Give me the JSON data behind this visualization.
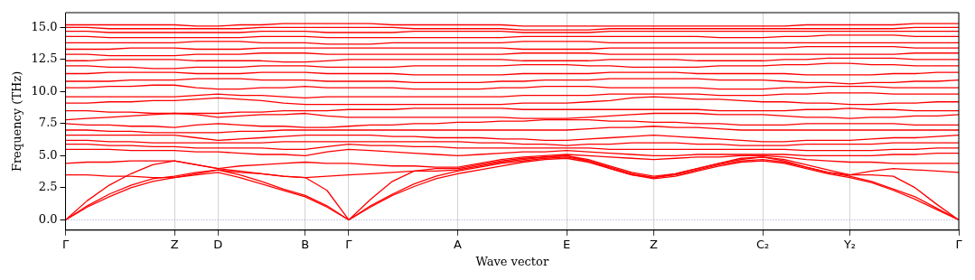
{
  "chart_data": {
    "type": "line",
    "xlabel": "Wave vector",
    "ylabel": "Frequency (THz)",
    "categories": [
      "Γ",
      null,
      null,
      null,
      null,
      "Z",
      null,
      "D",
      null,
      null,
      null,
      "B",
      null,
      "Γ",
      null,
      null,
      null,
      null,
      "A",
      null,
      null,
      null,
      null,
      "E",
      null,
      null,
      null,
      "Z",
      null,
      null,
      null,
      null,
      "C₂",
      null,
      null,
      null,
      "Y₂",
      null,
      null,
      null,
      null,
      "Γ"
    ],
    "ylim": [
      -0.8,
      16.15
    ],
    "yticks": [
      {
        "value": 0,
        "label": "0.0"
      },
      {
        "value": 2.5,
        "label": "2.5"
      },
      {
        "value": 5,
        "label": "5.0"
      },
      {
        "value": 7.5,
        "label": "7.5"
      },
      {
        "value": 10,
        "label": "10.0"
      },
      {
        "value": 12.5,
        "label": "12.5"
      },
      {
        "value": 15,
        "label": "15.0"
      }
    ],
    "grid": "x",
    "ref_lines": [
      {
        "axis": "y",
        "value": 0,
        "color": "#7f7fd0",
        "line_style": "dotted"
      }
    ],
    "series": [
      {
        "color": "#ff0000",
        "values": [
          0,
          1.0,
          1.8,
          2.5,
          3.0,
          3.3,
          3.5,
          3.7,
          3.3,
          2.8,
          2.3,
          1.8,
          1.0,
          0,
          1.0,
          1.9,
          2.6,
          3.2,
          3.6,
          3.9,
          4.2,
          4.5,
          4.7,
          4.8,
          4.5,
          4.0,
          3.5,
          3.2,
          3.4,
          3.8,
          4.2,
          4.5,
          4.6,
          4.4,
          4.0,
          3.6,
          3.3,
          2.9,
          2.3,
          1.6,
          0.8,
          0
        ]
      },
      {
        "color": "#ff0000",
        "values": [
          0,
          1.1,
          2.0,
          2.7,
          3.2,
          3.4,
          3.7,
          3.9,
          3.5,
          3.0,
          2.4,
          1.9,
          1.1,
          0,
          1.1,
          2.0,
          2.8,
          3.4,
          3.8,
          4.1,
          4.4,
          4.6,
          4.8,
          4.9,
          4.6,
          4.1,
          3.6,
          3.3,
          3.5,
          3.9,
          4.3,
          4.6,
          4.7,
          4.5,
          4.1,
          3.7,
          3.4,
          3.0,
          2.4,
          1.8,
          0.9,
          0
        ]
      },
      {
        "color": "#ff0000",
        "values": [
          0,
          1.5,
          2.7,
          3.6,
          4.3,
          4.6,
          4.3,
          4.0,
          3.8,
          3.6,
          3.4,
          3.3,
          2.3,
          0,
          1.6,
          3.0,
          3.8,
          4.0,
          4.0,
          4.3,
          4.6,
          4.8,
          4.9,
          5.0,
          4.7,
          4.2,
          3.7,
          3.4,
          3.6,
          4.0,
          4.4,
          4.8,
          4.9,
          4.7,
          4.3,
          3.9,
          3.5,
          3.5,
          3.4,
          2.5,
          1.2,
          0
        ]
      },
      {
        "color": "#ff0000",
        "values": [
          3.5,
          3.5,
          3.4,
          3.4,
          3.3,
          3.3,
          3.6,
          3.9,
          3.7,
          3.6,
          3.4,
          3.3,
          3.4,
          3.5,
          3.6,
          3.7,
          3.8,
          3.8,
          3.9,
          4.2,
          4.5,
          4.7,
          4.9,
          5.0,
          4.6,
          4.0,
          3.5,
          3.3,
          3.6,
          4.0,
          4.4,
          4.7,
          4.9,
          4.6,
          4.1,
          3.7,
          3.5,
          3.8,
          4.0,
          3.9,
          3.8,
          3.7
        ]
      },
      {
        "color": "#ff0000",
        "values": [
          4.4,
          4.5,
          4.5,
          4.6,
          4.6,
          4.6,
          4.3,
          4.0,
          4.2,
          4.3,
          4.4,
          4.5,
          4.4,
          4.4,
          4.3,
          4.2,
          4.2,
          4.1,
          4.1,
          4.4,
          4.7,
          4.9,
          5.0,
          5.1,
          5.0,
          4.9,
          4.8,
          4.7,
          4.8,
          4.9,
          4.9,
          5.0,
          5.0,
          4.9,
          4.7,
          4.6,
          4.5,
          4.5,
          4.4,
          4.4,
          4.4,
          4.4
        ]
      },
      {
        "color": "#ff0000",
        "values": [
          5.5,
          5.5,
          5.5,
          5.4,
          5.4,
          5.4,
          5.3,
          5.3,
          5.2,
          5.1,
          5.1,
          5.0,
          5.3,
          5.5,
          5.4,
          5.3,
          5.2,
          5.1,
          5.0,
          5.1,
          5.2,
          5.3,
          5.3,
          5.4,
          5.3,
          5.2,
          5.1,
          5.0,
          5.0,
          5.1,
          5.1,
          5.1,
          5.1,
          5.1,
          5.0,
          5.0,
          5.0,
          5.0,
          5.1,
          5.1,
          5.2,
          5.2
        ]
      },
      {
        "color": "#ff0000",
        "values": [
          5.9,
          5.9,
          5.8,
          5.8,
          5.7,
          5.7,
          5.6,
          5.6,
          5.6,
          5.6,
          5.5,
          5.5,
          5.7,
          5.9,
          5.8,
          5.8,
          5.7,
          5.7,
          5.6,
          5.6,
          5.6,
          5.6,
          5.6,
          5.6,
          5.6,
          5.5,
          5.5,
          5.5,
          5.5,
          5.5,
          5.5,
          5.5,
          5.5,
          5.5,
          5.4,
          5.4,
          5.4,
          5.4,
          5.5,
          5.5,
          5.6,
          5.6
        ]
      },
      {
        "color": "#ff0000",
        "values": [
          6.2,
          6.2,
          6.1,
          6.1,
          6.0,
          6.0,
          6.0,
          6.0,
          6.0,
          6.0,
          6.1,
          6.1,
          6.1,
          6.1,
          6.1,
          6.1,
          6.1,
          6.1,
          6.1,
          6.0,
          6.0,
          5.9,
          5.9,
          5.8,
          5.9,
          5.9,
          6.0,
          6.0,
          6.0,
          5.9,
          5.9,
          5.8,
          5.8,
          5.8,
          5.9,
          5.9,
          5.9,
          5.9,
          6.0,
          6.0,
          6.0,
          6.0
        ]
      },
      {
        "color": "#ff0000",
        "values": [
          6.6,
          6.6,
          6.6,
          6.6,
          6.6,
          6.6,
          6.4,
          6.2,
          6.3,
          6.4,
          6.5,
          6.6,
          6.6,
          6.6,
          6.6,
          6.5,
          6.5,
          6.4,
          6.4,
          6.4,
          6.3,
          6.3,
          6.2,
          6.2,
          6.3,
          6.4,
          6.5,
          6.6,
          6.5,
          6.4,
          6.3,
          6.2,
          6.1,
          6.1,
          6.2,
          6.2,
          6.2,
          6.3,
          6.4,
          6.4,
          6.5,
          6.6
        ]
      },
      {
        "color": "#ff0000",
        "values": [
          7.0,
          7.0,
          6.9,
          6.9,
          6.8,
          6.8,
          6.8,
          6.8,
          6.9,
          6.9,
          7.0,
          7.0,
          7.0,
          7.0,
          7.0,
          7.0,
          7.0,
          7.0,
          7.0,
          7.0,
          7.0,
          7.0,
          7.0,
          7.0,
          7.1,
          7.2,
          7.2,
          7.3,
          7.2,
          7.2,
          7.1,
          7.0,
          7.0,
          7.0,
          7.0,
          7.0,
          7.0,
          7.0,
          7.0,
          7.0,
          7.0,
          7.0
        ]
      },
      {
        "color": "#ff0000",
        "values": [
          7.5,
          7.4,
          7.4,
          7.3,
          7.3,
          7.2,
          7.4,
          7.5,
          7.4,
          7.3,
          7.3,
          7.2,
          7.2,
          7.3,
          7.4,
          7.4,
          7.5,
          7.5,
          7.6,
          7.6,
          7.7,
          7.7,
          7.8,
          7.8,
          7.8,
          7.7,
          7.7,
          7.6,
          7.6,
          7.5,
          7.5,
          7.4,
          7.4,
          7.4,
          7.5,
          7.5,
          7.5,
          7.5,
          7.5,
          7.4,
          7.4,
          7.4
        ]
      },
      {
        "color": "#ff0000",
        "values": [
          7.8,
          7.9,
          8.0,
          8.1,
          8.2,
          8.3,
          8.2,
          8.0,
          8.1,
          8.2,
          8.2,
          8.3,
          8.1,
          8.0,
          8.0,
          8.0,
          8.0,
          8.0,
          8.0,
          8.0,
          8.0,
          7.9,
          7.9,
          7.9,
          8.0,
          8.1,
          8.2,
          8.3,
          8.3,
          8.3,
          8.2,
          8.2,
          8.2,
          8.1,
          8.0,
          8.0,
          7.9,
          8.0,
          8.0,
          8.1,
          8.1,
          8.2
        ]
      },
      {
        "color": "#ff0000",
        "values": [
          8.5,
          8.5,
          8.4,
          8.4,
          8.3,
          8.3,
          8.3,
          8.3,
          8.4,
          8.4,
          8.5,
          8.5,
          8.5,
          8.6,
          8.6,
          8.6,
          8.7,
          8.7,
          8.7,
          8.7,
          8.7,
          8.6,
          8.6,
          8.6,
          8.6,
          8.6,
          8.6,
          8.6,
          8.6,
          8.6,
          8.5,
          8.5,
          8.5,
          8.5,
          8.6,
          8.6,
          8.7,
          8.6,
          8.6,
          8.5,
          8.5,
          8.5
        ]
      },
      {
        "color": "#ff0000",
        "values": [
          9.1,
          9.1,
          9.2,
          9.2,
          9.3,
          9.3,
          9.4,
          9.5,
          9.4,
          9.3,
          9.1,
          9.0,
          9.0,
          9.0,
          9.0,
          9.0,
          9.0,
          9.0,
          9.0,
          9.0,
          9.0,
          9.1,
          9.1,
          9.1,
          9.2,
          9.3,
          9.5,
          9.6,
          9.5,
          9.4,
          9.4,
          9.3,
          9.2,
          9.2,
          9.1,
          9.1,
          9.0,
          9.0,
          9.1,
          9.1,
          9.2,
          9.2
        ]
      },
      {
        "color": "#ff0000",
        "values": [
          9.6,
          9.6,
          9.6,
          9.6,
          9.6,
          9.6,
          9.7,
          9.8,
          9.7,
          9.7,
          9.6,
          9.5,
          9.6,
          9.6,
          9.6,
          9.6,
          9.6,
          9.6,
          9.6,
          9.6,
          9.6,
          9.7,
          9.7,
          9.7,
          9.7,
          9.8,
          9.8,
          9.8,
          9.8,
          9.8,
          9.7,
          9.7,
          9.7,
          9.8,
          9.8,
          9.9,
          9.9,
          9.9,
          9.8,
          9.8,
          9.8,
          9.8
        ]
      },
      {
        "color": "#ff0000",
        "values": [
          10.3,
          10.3,
          10.4,
          10.4,
          10.5,
          10.5,
          10.3,
          10.2,
          10.2,
          10.3,
          10.3,
          10.4,
          10.3,
          10.3,
          10.3,
          10.3,
          10.2,
          10.2,
          10.2,
          10.2,
          10.3,
          10.3,
          10.4,
          10.4,
          10.4,
          10.3,
          10.3,
          10.3,
          10.3,
          10.3,
          10.2,
          10.2,
          10.2,
          10.3,
          10.3,
          10.4,
          10.4,
          10.4,
          10.3,
          10.3,
          10.3,
          10.3
        ]
      },
      {
        "color": "#ff0000",
        "values": [
          10.8,
          10.8,
          10.8,
          10.9,
          10.9,
          10.9,
          11.0,
          11.0,
          11.0,
          10.9,
          10.9,
          10.9,
          10.8,
          10.8,
          10.8,
          10.8,
          10.7,
          10.7,
          10.7,
          10.7,
          10.8,
          10.8,
          10.9,
          10.9,
          10.9,
          11.0,
          11.0,
          11.0,
          11.0,
          11.0,
          10.9,
          10.9,
          10.9,
          10.8,
          10.7,
          10.7,
          10.6,
          10.7,
          10.7,
          10.8,
          10.8,
          10.9
        ]
      },
      {
        "color": "#ff0000",
        "values": [
          11.4,
          11.4,
          11.5,
          11.5,
          11.5,
          11.5,
          11.4,
          11.4,
          11.4,
          11.5,
          11.5,
          11.5,
          11.4,
          11.4,
          11.4,
          11.4,
          11.3,
          11.3,
          11.3,
          11.3,
          11.3,
          11.4,
          11.4,
          11.4,
          11.4,
          11.5,
          11.5,
          11.5,
          11.5,
          11.4,
          11.4,
          11.4,
          11.4,
          11.4,
          11.3,
          11.3,
          11.3,
          11.3,
          11.4,
          11.4,
          11.5,
          11.5
        ]
      },
      {
        "color": "#ff0000",
        "values": [
          12.0,
          12.0,
          11.9,
          11.9,
          11.8,
          11.8,
          11.9,
          11.9,
          11.9,
          12.0,
          12.0,
          12.0,
          11.9,
          11.9,
          11.9,
          11.9,
          12.0,
          12.0,
          12.0,
          12.0,
          12.0,
          12.1,
          12.1,
          12.1,
          12.0,
          12.0,
          11.9,
          11.9,
          11.9,
          11.9,
          12.0,
          12.0,
          12.0,
          12.1,
          12.1,
          12.2,
          12.2,
          12.1,
          12.1,
          12.0,
          12.0,
          12.0
        ]
      },
      {
        "color": "#ff0000",
        "values": [
          12.4,
          12.4,
          12.5,
          12.5,
          12.5,
          12.5,
          12.4,
          12.4,
          12.4,
          12.4,
          12.3,
          12.3,
          12.4,
          12.5,
          12.5,
          12.5,
          12.5,
          12.5,
          12.5,
          12.5,
          12.5,
          12.4,
          12.4,
          12.4,
          12.4,
          12.5,
          12.5,
          12.5,
          12.5,
          12.4,
          12.4,
          12.4,
          12.4,
          12.5,
          12.5,
          12.6,
          12.6,
          12.6,
          12.6,
          12.5,
          12.5,
          12.5
        ]
      },
      {
        "color": "#ff0000",
        "values": [
          12.9,
          12.9,
          12.8,
          12.8,
          12.8,
          12.8,
          12.9,
          12.9,
          12.9,
          13.0,
          13.0,
          13.0,
          12.9,
          12.9,
          12.9,
          12.9,
          12.9,
          12.9,
          12.9,
          12.9,
          12.9,
          13.0,
          13.0,
          13.0,
          13.0,
          12.9,
          12.9,
          12.9,
          12.9,
          12.9,
          12.9,
          12.9,
          12.9,
          12.9,
          12.9,
          12.9,
          12.9,
          12.9,
          12.9,
          13.0,
          13.0,
          13.0
        ]
      },
      {
        "color": "#ff0000",
        "values": [
          13.3,
          13.3,
          13.3,
          13.4,
          13.4,
          13.4,
          13.3,
          13.3,
          13.3,
          13.4,
          13.4,
          13.4,
          13.4,
          13.4,
          13.4,
          13.4,
          13.4,
          13.4,
          13.4,
          13.4,
          13.4,
          13.3,
          13.3,
          13.3,
          13.3,
          13.4,
          13.4,
          13.4,
          13.4,
          13.4,
          13.4,
          13.4,
          13.4,
          13.4,
          13.5,
          13.5,
          13.5,
          13.5,
          13.5,
          13.4,
          13.4,
          13.4
        ]
      },
      {
        "color": "#ff0000",
        "values": [
          13.8,
          13.8,
          13.8,
          13.8,
          13.8,
          13.8,
          13.9,
          13.9,
          13.9,
          13.8,
          13.8,
          13.8,
          13.7,
          13.7,
          13.7,
          13.8,
          13.8,
          13.8,
          13.8,
          13.8,
          13.8,
          13.9,
          13.9,
          13.9,
          13.9,
          13.8,
          13.8,
          13.8,
          13.8,
          13.8,
          13.8,
          13.8,
          13.8,
          13.8,
          13.8,
          13.8,
          13.8,
          13.8,
          13.8,
          13.8,
          13.8,
          13.8
        ]
      },
      {
        "color": "#ff0000",
        "values": [
          14.3,
          14.3,
          14.2,
          14.2,
          14.2,
          14.2,
          14.2,
          14.2,
          14.2,
          14.3,
          14.3,
          14.3,
          14.2,
          14.2,
          14.2,
          14.2,
          14.2,
          14.2,
          14.2,
          14.2,
          14.2,
          14.3,
          14.3,
          14.3,
          14.3,
          14.3,
          14.3,
          14.3,
          14.3,
          14.3,
          14.2,
          14.2,
          14.2,
          14.3,
          14.3,
          14.4,
          14.4,
          14.4,
          14.4,
          14.3,
          14.3,
          14.3
        ]
      },
      {
        "color": "#ff0000",
        "values": [
          14.7,
          14.7,
          14.6,
          14.6,
          14.6,
          14.6,
          14.6,
          14.6,
          14.6,
          14.7,
          14.7,
          14.7,
          14.6,
          14.6,
          14.6,
          14.6,
          14.7,
          14.7,
          14.7,
          14.7,
          14.7,
          14.6,
          14.6,
          14.6,
          14.6,
          14.7,
          14.7,
          14.7,
          14.7,
          14.7,
          14.7,
          14.7,
          14.7,
          14.7,
          14.7,
          14.7,
          14.7,
          14.7,
          14.7,
          14.7,
          14.7,
          14.7
        ]
      },
      {
        "color": "#ff0000",
        "values": [
          15.0,
          15.0,
          14.9,
          14.9,
          14.9,
          14.9,
          14.9,
          14.9,
          14.9,
          15.0,
          15.0,
          15.0,
          15.0,
          15.0,
          15.0,
          15.0,
          14.9,
          14.9,
          14.9,
          14.9,
          14.9,
          14.8,
          14.8,
          14.8,
          14.8,
          14.9,
          14.9,
          14.9,
          14.9,
          14.9,
          14.9,
          14.9,
          14.9,
          14.9,
          14.9,
          14.9,
          14.9,
          14.9,
          14.9,
          15.0,
          15.0,
          15.0
        ]
      },
      {
        "color": "#ff0000",
        "values": [
          15.2,
          15.2,
          15.2,
          15.2,
          15.2,
          15.2,
          15.1,
          15.1,
          15.2,
          15.2,
          15.3,
          15.3,
          15.3,
          15.3,
          15.3,
          15.2,
          15.2,
          15.2,
          15.2,
          15.2,
          15.2,
          15.1,
          15.1,
          15.1,
          15.1,
          15.1,
          15.1,
          15.1,
          15.1,
          15.1,
          15.1,
          15.1,
          15.1,
          15.1,
          15.2,
          15.2,
          15.2,
          15.2,
          15.2,
          15.3,
          15.3,
          15.3
        ]
      }
    ]
  }
}
